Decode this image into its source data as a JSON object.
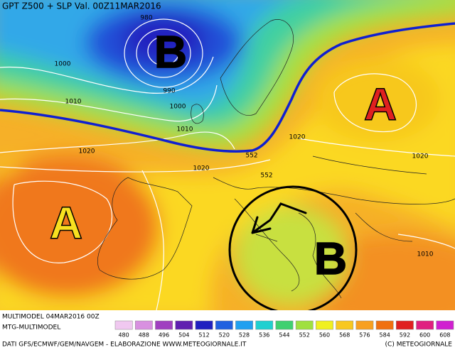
{
  "header": {
    "title": "GPT Z500 + SLP Val. 00Z11MAR2016"
  },
  "pressure_centers": [
    {
      "label": "B",
      "color": "#000000"
    },
    {
      "label": "A",
      "color": "#e02020"
    },
    {
      "label": "A",
      "color": "#f8e020"
    },
    {
      "label": "B",
      "color": "#000000"
    }
  ],
  "isobar_labels": [
    "980",
    "1000",
    "990",
    "1000",
    "1010",
    "1010",
    "1020",
    "1020",
    "1020",
    "1020",
    "1010",
    "552",
    "552"
  ],
  "legend": {
    "items": [
      {
        "value": 480,
        "color": "#f0c8f0"
      },
      {
        "value": 488,
        "color": "#d890e0"
      },
      {
        "value": 496,
        "color": "#a040c0"
      },
      {
        "value": 504,
        "color": "#6020b0"
      },
      {
        "value": 512,
        "color": "#2020c0"
      },
      {
        "value": 520,
        "color": "#2060e0"
      },
      {
        "value": 528,
        "color": "#20a0f0"
      },
      {
        "value": 536,
        "color": "#20d0d0"
      },
      {
        "value": 544,
        "color": "#40d070"
      },
      {
        "value": 552,
        "color": "#a0e040"
      },
      {
        "value": 560,
        "color": "#f0f020"
      },
      {
        "value": 568,
        "color": "#f8c820"
      },
      {
        "value": 576,
        "color": "#f8a020"
      },
      {
        "value": 584,
        "color": "#f07010"
      },
      {
        "value": 592,
        "color": "#e02020"
      },
      {
        "value": 600,
        "color": "#e02080"
      },
      {
        "value": 608,
        "color": "#d020d0"
      }
    ]
  },
  "footer": {
    "run": "MULTIMODEL 04MAR2016 00Z",
    "model": "MTG-MULTIMODEL",
    "sources": "DATI GFS/ECMWF/GEM/NAVGEM - ELABORAZIONE WWW.METEOGIORNALE.IT",
    "copyright": "(C) METEOGIORNALE"
  }
}
